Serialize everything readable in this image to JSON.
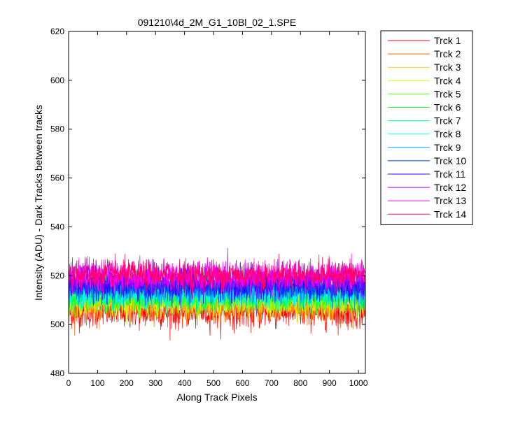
{
  "chart_data": {
    "type": "line",
    "title": "091210\\4d_2M_G1_10Bl_02_1.SPE",
    "xlabel": "Along Track Pixels",
    "ylabel": "Intensity (ADU) - Dark Tracks between tracks",
    "xlim": [
      0,
      1024
    ],
    "ylim": [
      480,
      620
    ],
    "xticks": [
      0,
      100,
      200,
      300,
      400,
      500,
      600,
      700,
      800,
      900,
      1000
    ],
    "yticks": [
      480,
      500,
      520,
      540,
      560,
      580,
      600,
      620
    ],
    "grid": false,
    "legend_position": "outside-top-right",
    "series": [
      {
        "name": "Trck 1",
        "color": "#ff0000",
        "mean": 505.0,
        "noise": 3.3
      },
      {
        "name": "Trck 2",
        "color": "#ff6600",
        "mean": 507.5,
        "noise": 3.0
      },
      {
        "name": "Trck 3",
        "color": "#ffcc00",
        "mean": 509.0,
        "noise": 3.0
      },
      {
        "name": "Trck 4",
        "color": "#ccff00",
        "mean": 510.0,
        "noise": 3.0
      },
      {
        "name": "Trck 5",
        "color": "#66ff00",
        "mean": 511.0,
        "noise": 3.0
      },
      {
        "name": "Trck 6",
        "color": "#00ff33",
        "mean": 512.0,
        "noise": 3.0
      },
      {
        "name": "Trck 7",
        "color": "#00ff99",
        "mean": 512.5,
        "noise": 3.0
      },
      {
        "name": "Trck 8",
        "color": "#00ffff",
        "mean": 513.0,
        "noise": 3.0
      },
      {
        "name": "Trck 9",
        "color": "#0099ff",
        "mean": 514.0,
        "noise": 3.0
      },
      {
        "name": "Trck 10",
        "color": "#0033ff",
        "mean": 515.5,
        "noise": 3.0
      },
      {
        "name": "Trck 11",
        "color": "#3300ff",
        "mean": 517.0,
        "noise": 3.0
      },
      {
        "name": "Trck 12",
        "color": "#9900ff",
        "mean": 518.5,
        "noise": 3.0
      },
      {
        "name": "Trck 13",
        "color": "#ff00ff",
        "mean": 520.0,
        "noise": 3.0
      },
      {
        "name": "Trck 14",
        "color": "#ff0066",
        "mean": 520.5,
        "noise": 3.0
      }
    ]
  }
}
